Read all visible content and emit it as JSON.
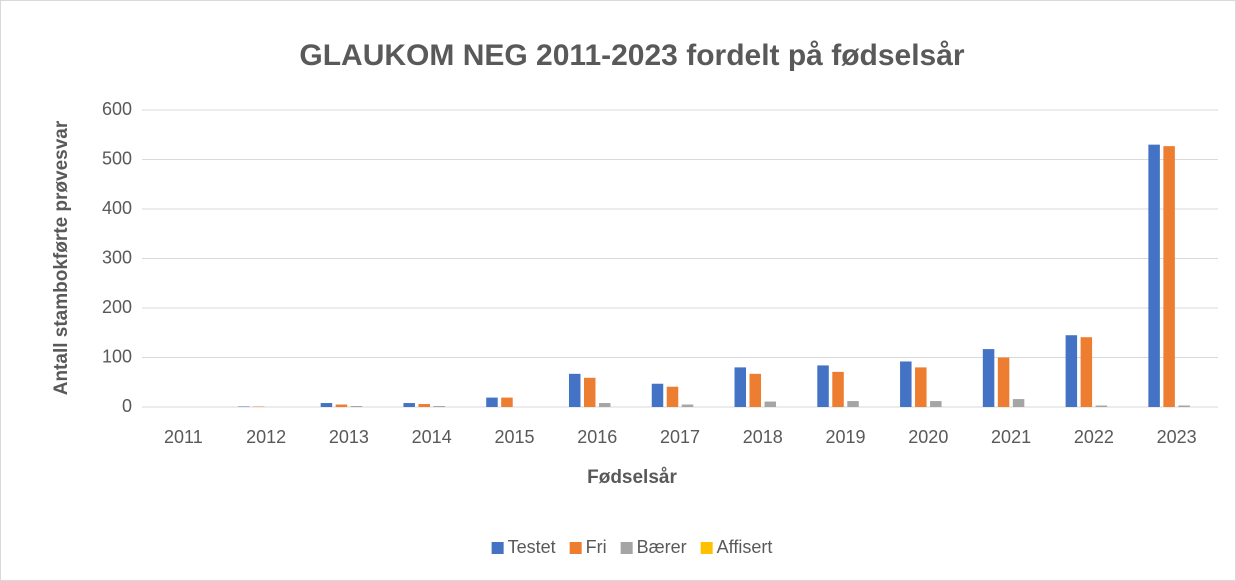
{
  "chart_data": {
    "type": "bar",
    "title": "GLAUKOM NEG 2011-2023 fordelt på fødselsår",
    "x_label": "Fødselsår",
    "y_label": "Antall stambokførte prøvesvar",
    "categories": [
      "2011",
      "2012",
      "2013",
      "2014",
      "2015",
      "2016",
      "2017",
      "2018",
      "2019",
      "2020",
      "2021",
      "2022",
      "2023"
    ],
    "series": [
      {
        "name": "Testet",
        "color": "#4472c4",
        "values": [
          0,
          1,
          8,
          8,
          19,
          67,
          47,
          80,
          84,
          92,
          117,
          145,
          530
        ]
      },
      {
        "name": "Fri",
        "color": "#ed7d31",
        "values": [
          0,
          1,
          5,
          6,
          19,
          59,
          41,
          67,
          71,
          80,
          100,
          141,
          527
        ]
      },
      {
        "name": "Bærer",
        "color": "#a5a5a5",
        "values": [
          0,
          0,
          2,
          2,
          0,
          8,
          5,
          11,
          12,
          12,
          16,
          3,
          3
        ]
      },
      {
        "name": "Affisert",
        "color": "#ffc000",
        "values": [
          0,
          0,
          0,
          0,
          0,
          0,
          0,
          0,
          0,
          0,
          0,
          0,
          0
        ]
      }
    ],
    "ylim": [
      0,
      600
    ],
    "yticks": [
      0,
      100,
      200,
      300,
      400,
      500,
      600
    ],
    "grid": true,
    "legend": "bottom"
  }
}
